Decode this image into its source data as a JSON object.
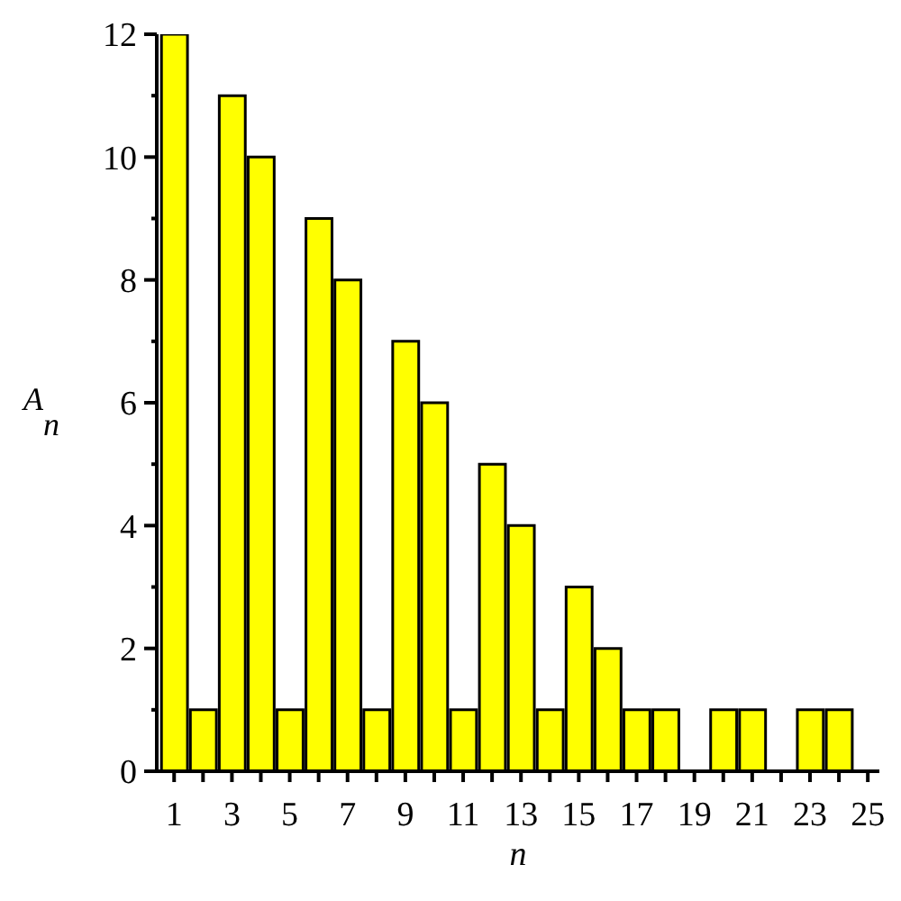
{
  "chart_data": {
    "type": "bar",
    "xlabel": "n",
    "ylabel": "A$_{n}$",
    "x": [
      1,
      2,
      3,
      4,
      5,
      6,
      7,
      8,
      9,
      10,
      11,
      12,
      13,
      14,
      15,
      16,
      17,
      18,
      20,
      21,
      23,
      24
    ],
    "values": [
      12,
      1,
      11,
      10,
      1,
      9,
      8,
      1,
      7,
      6,
      1,
      5,
      4,
      1,
      3,
      2,
      1,
      1,
      1,
      1,
      1,
      1
    ],
    "color": "#ffff00",
    "xlim": [
      0.4,
      25.4
    ],
    "xticks": [
      1,
      {
        "value": 2,
        "label": null
      },
      3,
      {
        "value": 4,
        "label": null
      },
      5,
      {
        "value": 6,
        "label": null
      },
      7,
      {
        "value": 8,
        "label": null
      },
      9,
      {
        "value": 10,
        "label": null
      },
      11,
      {
        "value": 12,
        "label": null
      },
      13,
      {
        "value": 14,
        "label": null
      },
      15,
      {
        "value": 16,
        "label": null
      },
      17,
      {
        "value": 18,
        "label": null
      },
      19,
      {
        "value": 20,
        "label": null
      },
      21,
      {
        "value": 22,
        "label": null
      },
      23,
      {
        "value": 24,
        "label": null
      },
      25
    ],
    "ylim": [
      0,
      12
    ],
    "yticks": [
      0,
      {
        "value": 1,
        "label": null
      },
      2,
      {
        "value": 3,
        "label": null
      },
      4,
      {
        "value": 5,
        "label": null
      },
      6,
      {
        "value": 7,
        "label": null
      },
      8,
      {
        "value": 9,
        "label": null
      },
      10,
      {
        "value": 11,
        "label": null
      },
      12
    ]
  }
}
